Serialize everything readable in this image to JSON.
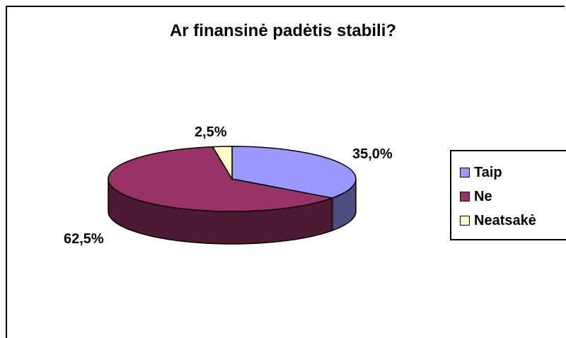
{
  "chart_data": {
    "type": "pie",
    "title": "Ar finansinė padėtis stabili?",
    "slices": [
      {
        "label": "Taip",
        "value": 35.0,
        "display": "35,0%",
        "color": "#9999ff",
        "side_color": "#4d4d80"
      },
      {
        "label": "Ne",
        "value": 62.5,
        "display": "62,5%",
        "color": "#993366",
        "side_color": "#4d1a33"
      },
      {
        "label": "Neatsakė",
        "value": 2.5,
        "display": "2,5%",
        "color": "#ffffcc",
        "side_color": "#808066"
      }
    ],
    "legend_position": "right",
    "style": "3d"
  }
}
